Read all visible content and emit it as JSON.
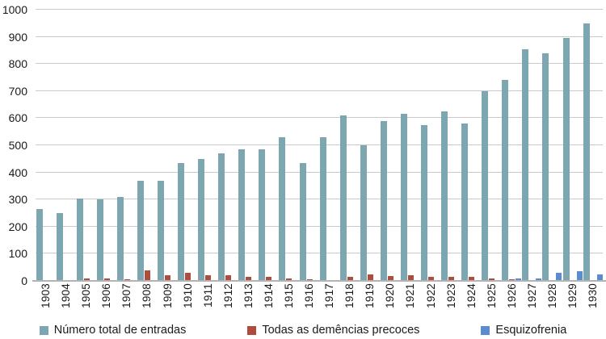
{
  "chart_data": {
    "type": "bar",
    "title": "",
    "xlabel": "",
    "ylabel": "",
    "categories": [
      1903,
      1904,
      1905,
      1906,
      1907,
      1908,
      1909,
      1910,
      1911,
      1912,
      1913,
      1914,
      1915,
      1916,
      1917,
      1918,
      1919,
      1920,
      1921,
      1922,
      1923,
      1924,
      1925,
      1926,
      1927,
      1928,
      1929,
      1930
    ],
    "series": [
      {
        "name": "Número total de entradas",
        "color": "#7CA6B0",
        "values": [
          265,
          250,
          305,
          300,
          310,
          370,
          370,
          435,
          450,
          470,
          485,
          485,
          530,
          435,
          530,
          610,
          500,
          590,
          615,
          575,
          625,
          580,
          700,
          740,
          855,
          840,
          895,
          950
        ]
      },
      {
        "name": "Todas as demências precoces",
        "color": "#AE4D3E",
        "values": [
          0,
          0,
          8,
          10,
          5,
          40,
          20,
          30,
          20,
          20,
          15,
          15,
          10,
          5,
          3,
          15,
          25,
          18,
          20,
          15,
          15,
          15,
          10,
          5,
          0,
          0,
          3,
          0
        ]
      },
      {
        "name": "Esquizofrenia",
        "color": "#5C8CD0",
        "values": [
          0,
          0,
          0,
          0,
          0,
          0,
          0,
          0,
          0,
          0,
          0,
          0,
          0,
          0,
          0,
          0,
          0,
          0,
          0,
          0,
          0,
          0,
          0,
          10,
          8,
          30,
          35,
          25
        ]
      }
    ],
    "ylim": [
      0,
      1000
    ],
    "yticks": [
      0,
      100,
      200,
      300,
      400,
      500,
      600,
      700,
      800,
      900,
      1000
    ],
    "grid": "horizontal",
    "legend_position": "bottom",
    "x_tick_rotation": "vertical"
  },
  "colors": {
    "background": "#ffffff",
    "gridline": "#c9c9c9",
    "axis_line": "#b3b3b3",
    "text": "#1a1a1a"
  }
}
